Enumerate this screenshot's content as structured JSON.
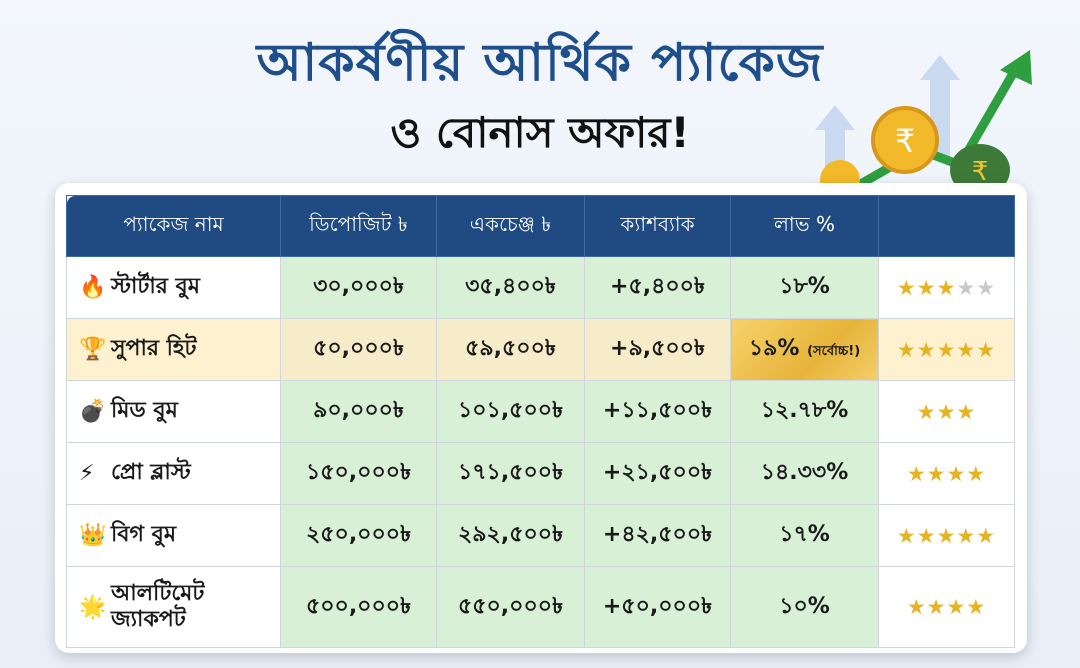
{
  "title_line1": "আকর্ষণীয় আর্থিক প্যাকেজ",
  "title_line2": "ও বোনাস অফার!",
  "headers": [
    "প্যাকেজ নাম",
    "ডিপোজিট ৳",
    "একচেঞ্জ ৳",
    "ক্যাশব্যাক",
    "লাভ %",
    ""
  ],
  "rows": [
    {
      "icon": "🔥",
      "name": "স্টার্টার বুম",
      "deposit": "৩০,০০০৳",
      "exchange": "৩৫,৪০০৳",
      "cashback": "+৫,৪০০৳",
      "profit": "১৮%",
      "stars": 3,
      "max": 5
    },
    {
      "icon": "🏆",
      "name": "সুপার হিট",
      "deposit": "৫০,০০০৳",
      "exchange": "৫৯,৫০০৳",
      "cashback": "+৯,৫০০৳",
      "profit": "১৯%",
      "profit_note": "(সর্বোচ্চ!)",
      "stars": 5,
      "max": 5
    },
    {
      "icon": "💣",
      "name": "মিড বুম",
      "deposit": "৯০,০০০৳",
      "exchange": "১০১,৫০০৳",
      "cashback": "+১১,৫০০৳",
      "profit": "১২.৭৮%",
      "stars": 3,
      "max": 3
    },
    {
      "icon": "⚡",
      "name": "প্রো ব্লাস্ট",
      "deposit": "১৫০,০০০৳",
      "exchange": "১৭১,৫০০৳",
      "cashback": "+২১,৫০০৳",
      "profit": "১৪.৩৩%",
      "stars": 4,
      "max": 4
    },
    {
      "icon": "👑",
      "name": "বিগ বুম",
      "deposit": "২৫০,০০০৳",
      "exchange": "২৯২,৫০০৳",
      "cashback": "+৪২,৫০০৳",
      "profit": "১৭%",
      "stars": 5,
      "max": 5
    },
    {
      "icon": "🌟",
      "name_line1": "আলটিমেট",
      "name_line2": "জ্যাকপট",
      "deposit": "৫০০,০০০৳",
      "exchange": "৫৫০,০০০৳",
      "cashback": "+৫০,০০০৳",
      "profit": "১০%",
      "stars": 4,
      "max": 4
    }
  ],
  "colors": {
    "header": "#1f4a82",
    "title": "#1f4f8a",
    "cell_green": "#d8f0d6",
    "star": "#e6b422"
  }
}
